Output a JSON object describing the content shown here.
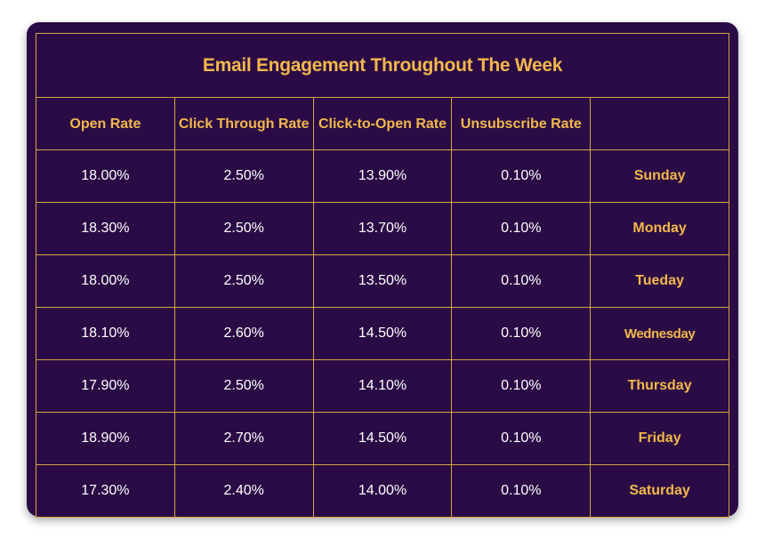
{
  "chart_data": {
    "type": "table",
    "title": "Email Engagement Throughout The Week",
    "columns": [
      "Open Rate",
      "Click Through Rate",
      "Click-to-Open Rate",
      "Unsubscribe Rate",
      ""
    ],
    "rows": [
      {
        "day": "Sunday",
        "values": [
          "18.00%",
          "2.50%",
          "13.90%",
          "0.10%"
        ]
      },
      {
        "day": "Monday",
        "values": [
          "18.30%",
          "2.50%",
          "13.70%",
          "0.10%"
        ]
      },
      {
        "day": "Tueday",
        "values": [
          "18.00%",
          "2.50%",
          "13.50%",
          "0.10%"
        ]
      },
      {
        "day": "Wednesday",
        "values": [
          "18.10%",
          "2.60%",
          "14.50%",
          "0.10%"
        ]
      },
      {
        "day": "Thursday",
        "values": [
          "17.90%",
          "2.50%",
          "14.10%",
          "0.10%"
        ]
      },
      {
        "day": "Friday",
        "values": [
          "18.90%",
          "2.70%",
          "14.50%",
          "0.10%"
        ]
      },
      {
        "day": "Saturday",
        "values": [
          "17.30%",
          "2.40%",
          "14.00%",
          "0.10%"
        ]
      }
    ]
  },
  "colors": {
    "background": "#2a0b45",
    "accent": "#f2b84b",
    "border": "#d9a441",
    "value_text": "#ffffff"
  }
}
